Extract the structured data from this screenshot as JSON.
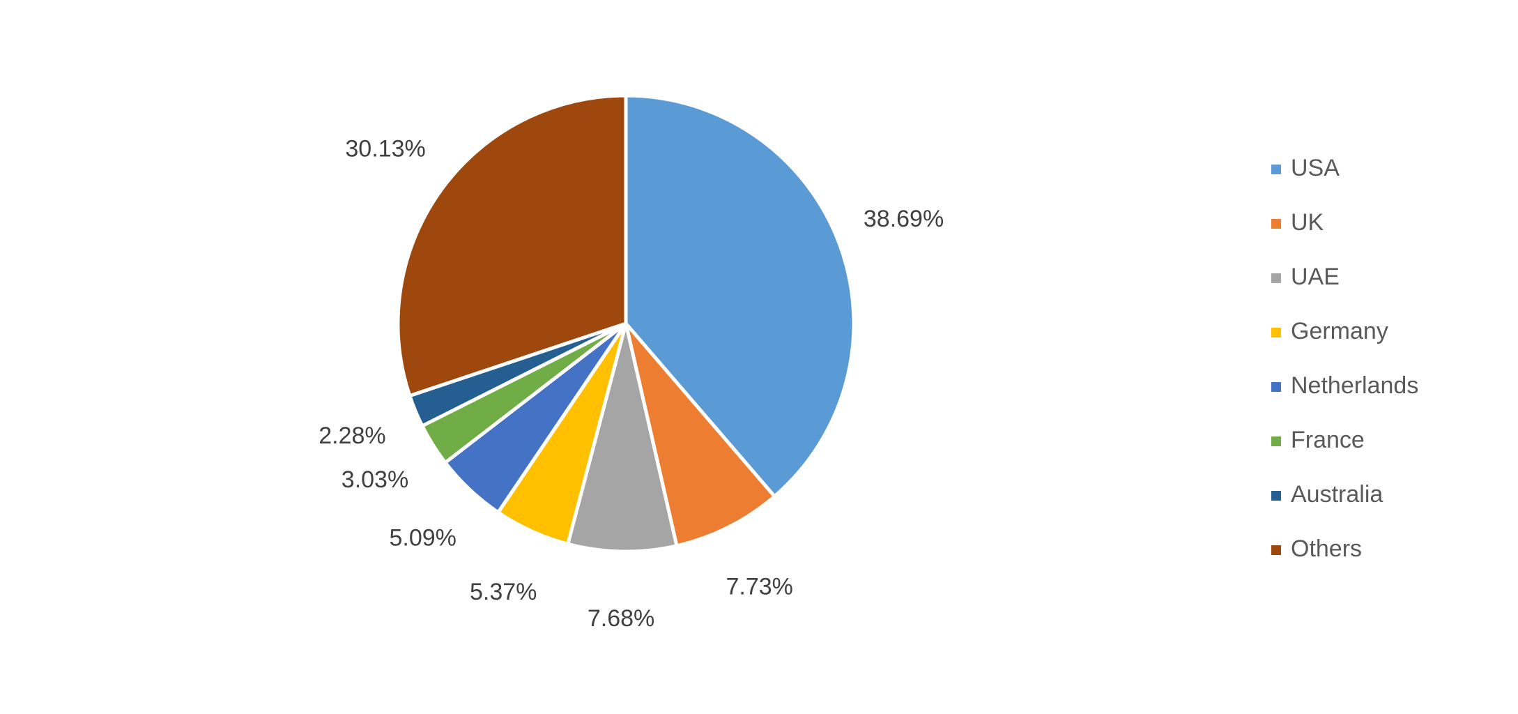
{
  "chart_data": {
    "type": "pie",
    "categories": [
      "USA",
      "UK",
      "UAE",
      "Germany",
      "Netherlands",
      "France",
      "Australia",
      "Others"
    ],
    "values": [
      38.69,
      7.73,
      7.68,
      5.37,
      5.09,
      3.03,
      2.28,
      30.13
    ],
    "value_labels": [
      "38.69%",
      "7.73%",
      "7.68%",
      "5.37%",
      "5.09%",
      "3.03%",
      "2.28%",
      "30.13%"
    ],
    "colors": [
      "#5b9bd5",
      "#ed7d31",
      "#a5a5a5",
      "#ffc000",
      "#4472c4",
      "#70ad47",
      "#255e91",
      "#9e480e"
    ],
    "legend": "right"
  }
}
